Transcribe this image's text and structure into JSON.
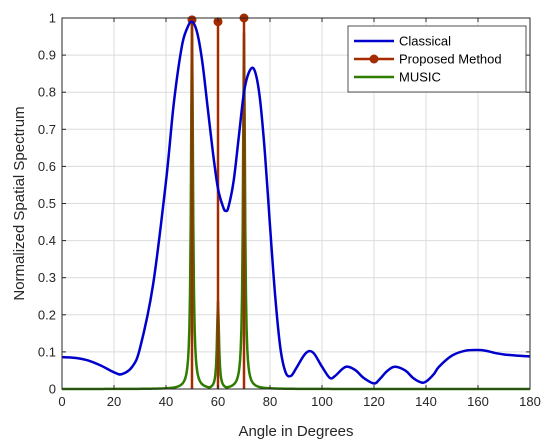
{
  "chart_data": {
    "type": "line",
    "xlabel": "Angle in Degrees",
    "ylabel": "Normalized Spatial Spectrum",
    "xlim": [
      0,
      180
    ],
    "ylim": [
      0,
      1
    ],
    "xticks": [
      0,
      20,
      40,
      60,
      80,
      100,
      120,
      140,
      160,
      180
    ],
    "yticks": [
      0,
      0.1,
      0.2,
      0.3,
      0.4,
      0.5,
      0.6,
      0.7,
      0.8,
      0.9,
      1
    ],
    "xtick_labels": [
      "0",
      "20",
      "40",
      "60",
      "80",
      "100",
      "120",
      "140",
      "160",
      "180"
    ],
    "ytick_labels": [
      "0",
      "0.1",
      "0.2",
      "0.3",
      "0.4",
      "0.5",
      "0.6",
      "0.7",
      "0.8",
      "0.9",
      "1"
    ],
    "grid": true,
    "legend_position": "top-right",
    "series": [
      {
        "name": "Classical",
        "color": "#0000cc",
        "style": "line",
        "x": [
          0,
          5,
          10,
          15,
          20,
          23,
          27,
          30,
          35,
          40,
          43,
          46,
          48,
          50,
          52,
          54,
          56,
          58,
          60,
          62,
          63,
          64,
          66,
          68,
          70,
          72,
          74,
          76,
          78,
          80,
          82,
          84,
          86,
          88,
          90,
          93,
          95,
          97,
          100,
          103,
          105,
          108,
          110,
          113,
          116,
          120,
          122,
          125,
          128,
          132,
          135,
          138,
          140,
          143,
          145,
          150,
          155,
          160,
          163,
          166,
          170,
          175,
          180
        ],
        "y": [
          0.086,
          0.084,
          0.077,
          0.063,
          0.045,
          0.04,
          0.06,
          0.11,
          0.28,
          0.56,
          0.77,
          0.92,
          0.97,
          0.99,
          0.96,
          0.88,
          0.76,
          0.64,
          0.54,
          0.49,
          0.48,
          0.49,
          0.56,
          0.68,
          0.8,
          0.855,
          0.86,
          0.79,
          0.64,
          0.44,
          0.25,
          0.11,
          0.045,
          0.035,
          0.055,
          0.09,
          0.102,
          0.095,
          0.06,
          0.03,
          0.035,
          0.055,
          0.06,
          0.05,
          0.03,
          0.015,
          0.025,
          0.048,
          0.06,
          0.05,
          0.03,
          0.018,
          0.02,
          0.04,
          0.06,
          0.09,
          0.103,
          0.105,
          0.103,
          0.098,
          0.093,
          0.09,
          0.088
        ]
      },
      {
        "name": "Proposed Method",
        "color": "#a52a00",
        "style": "stem",
        "x": [
          50,
          60,
          70
        ],
        "y": [
          0.995,
          0.99,
          1.0
        ]
      },
      {
        "name": "MUSIC",
        "color": "#2e7d00",
        "style": "line",
        "peaks": [
          {
            "x": 50,
            "y": 0.99
          },
          {
            "x": 60,
            "y": 0.235
          },
          {
            "x": 70,
            "y": 0.96
          }
        ]
      }
    ]
  }
}
